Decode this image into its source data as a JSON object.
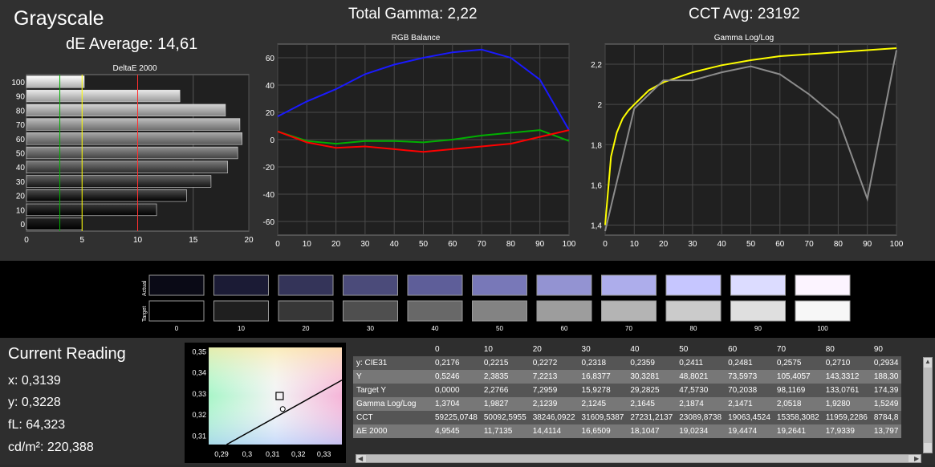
{
  "headers": {
    "grayscale": "Grayscale",
    "de_average": "dE Average: 14,61",
    "total_gamma": "Total Gamma: 2,22",
    "cct_avg": "CCT Avg: 23192"
  },
  "colors": {
    "background": "#303030",
    "plot_bg": "#202020",
    "red": "#ff0000",
    "green": "#00b000",
    "blue": "#1a1aff",
    "yellow": "#ffff00",
    "gray_line": "#8c8c8c"
  },
  "chart_data": [
    {
      "type": "bar",
      "title": "DeltaE 2000",
      "orientation": "horizontal",
      "categories": [
        "100",
        "90",
        "80",
        "70",
        "60",
        "50",
        "40",
        "30",
        "20",
        "10",
        "0"
      ],
      "values": [
        5.2,
        13.8,
        17.9,
        19.2,
        19.4,
        19.0,
        18.1,
        16.6,
        14.4,
        11.7,
        5.0
      ],
      "xlim": [
        0,
        20
      ],
      "xticks": [
        "0",
        "5",
        "10",
        "15",
        "20"
      ],
      "reference_lines": [
        {
          "x": 3,
          "color": "#00b000"
        },
        {
          "x": 5,
          "color": "#ffff00"
        },
        {
          "x": 10,
          "color": "#ff3030"
        }
      ]
    },
    {
      "type": "line",
      "title": "RGB Balance",
      "x": [
        0,
        10,
        20,
        30,
        40,
        50,
        60,
        70,
        80,
        90,
        100
      ],
      "xlim": [
        0,
        100
      ],
      "ylim": [
        -70,
        70
      ],
      "xticks": [
        "0",
        "10",
        "20",
        "30",
        "40",
        "50",
        "60",
        "70",
        "80",
        "90",
        "100"
      ],
      "yticks": [
        "60",
        "40",
        "20",
        "0",
        "-20",
        "-40",
        "-60"
      ],
      "series": [
        {
          "color": "#1a1aff",
          "values": [
            17,
            28,
            37,
            48,
            55,
            60,
            64,
            66,
            60,
            44,
            7
          ]
        },
        {
          "color": "#00b000",
          "values": [
            6,
            -1,
            -3,
            -1,
            -1,
            -2,
            0,
            3,
            5,
            7,
            -1
          ]
        },
        {
          "color": "#ff0000",
          "values": [
            6,
            -2,
            -6,
            -5,
            -7,
            -9,
            -7,
            -5,
            -3,
            2,
            7
          ]
        }
      ]
    },
    {
      "type": "line",
      "title": "Gamma Log/Log",
      "x": [
        0,
        2,
        4,
        6,
        8,
        10,
        15,
        20,
        30,
        40,
        50,
        60,
        70,
        80,
        90,
        100
      ],
      "xlim": [
        0,
        100
      ],
      "ylim": [
        1.35,
        2.3
      ],
      "xticks": [
        "0",
        "10",
        "20",
        "30",
        "40",
        "50",
        "60",
        "70",
        "80",
        "90",
        "100"
      ],
      "yticks": [
        "2,2",
        "2",
        "1,8",
        "1,6",
        "1,4"
      ],
      "series": [
        {
          "color": "#ffff00",
          "values": [
            1.4,
            1.74,
            1.86,
            1.93,
            1.97,
            2.0,
            2.07,
            2.11,
            2.16,
            2.195,
            2.22,
            2.24,
            2.25,
            2.26,
            2.27,
            2.28
          ]
        },
        {
          "color": "#8c8c8c",
          "x": [
            0,
            10,
            20,
            30,
            40,
            50,
            60,
            70,
            80,
            90,
            100
          ],
          "values": [
            1.37,
            1.98,
            2.12,
            2.12,
            2.16,
            2.19,
            2.15,
            2.05,
            1.93,
            1.53,
            2.27
          ]
        }
      ]
    },
    {
      "type": "scatter",
      "title": "",
      "xlim": [
        0.285,
        0.337
      ],
      "ylim": [
        0.306,
        0.352
      ],
      "xticks": [
        "0,29",
        "0,3",
        "0,31",
        "0,32",
        "0,33"
      ],
      "yticks": [
        "0,35",
        "0,34",
        "0,33",
        "0,32",
        "0,31"
      ],
      "measured": {
        "x": 0.3139,
        "y": 0.3228
      },
      "target": {
        "x": 0.3127,
        "y": 0.329
      }
    }
  ],
  "swatches": {
    "actual_label": "Actual",
    "target_label": "Target",
    "labels": [
      "0",
      "10",
      "20",
      "30",
      "40",
      "50",
      "60",
      "70",
      "80",
      "90",
      "100"
    ],
    "actual": [
      "#0a0a16",
      "#1b1b35",
      "#343459",
      "#4b4b7a",
      "#5e5e99",
      "#7878b8",
      "#9393d2",
      "#adadeb",
      "#c6c6ff",
      "#dcdcff",
      "#fcf4ff"
    ],
    "target": [
      "#000000",
      "#1f1f1f",
      "#373737",
      "#4f4f4f",
      "#686868",
      "#838383",
      "#9d9d9d",
      "#b4b4b4",
      "#cbcbcb",
      "#dfdfdf",
      "#f7f7f7"
    ]
  },
  "current_reading": {
    "title": "Current Reading",
    "x": "x: 0,3139",
    "y": "y: 0,3228",
    "fl": "fL: 64,323",
    "cdm2": "cd/m²: 220,388"
  },
  "table": {
    "columns": [
      "0",
      "10",
      "20",
      "30",
      "40",
      "50",
      "60",
      "70",
      "80",
      "90"
    ],
    "rows": [
      {
        "label": "y: CIE31",
        "values": [
          "0,2176",
          "0,2215",
          "0,2272",
          "0,2318",
          "0,2359",
          "0,2411",
          "0,2481",
          "0,2575",
          "0,2710",
          "0,2934"
        ]
      },
      {
        "label": "Y",
        "values": [
          "0,5246",
          "2,3835",
          "7,2213",
          "16,8377",
          "30,3281",
          "48,8021",
          "73,5973",
          "105,4057",
          "143,3312",
          "188,30"
        ]
      },
      {
        "label": "Target Y",
        "values": [
          "0,0000",
          "2,2766",
          "7,2959",
          "15,9278",
          "29,2825",
          "47,5730",
          "70,2038",
          "98,1169",
          "133,0761",
          "174,39"
        ]
      },
      {
        "label": "Gamma Log/Log",
        "values": [
          "1,3704",
          "1,9827",
          "2,1239",
          "2,1245",
          "2,1645",
          "2,1874",
          "2,1471",
          "2,0518",
          "1,9280",
          "1,5249"
        ]
      },
      {
        "label": "CCT",
        "values": [
          "59225,0748",
          "50092,5955",
          "38246,0922",
          "31609,5387",
          "27231,2137",
          "23089,8738",
          "19063,4524",
          "15358,3082",
          "11959,2286",
          "8784,8"
        ]
      },
      {
        "label": "ΔE 2000",
        "values": [
          "4,9545",
          "11,7135",
          "14,4114",
          "16,6509",
          "18,1047",
          "19,0234",
          "19,4474",
          "19,2641",
          "17,9339",
          "13,797"
        ]
      }
    ]
  }
}
